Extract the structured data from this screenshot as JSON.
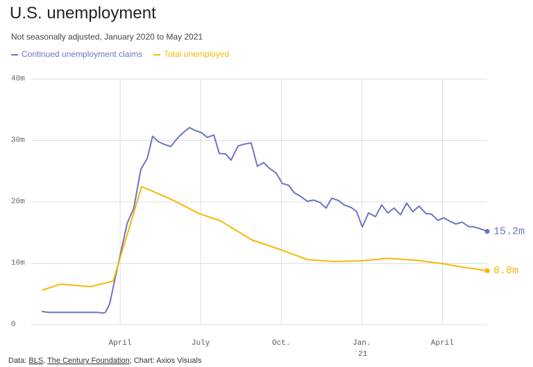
{
  "chart_data": {
    "type": "line",
    "title": "U.S. unemployment",
    "subtitle": "Not seasonally adjusted, January 2020 to May 2021",
    "source_parts": [
      "Data: ",
      "BLS",
      ", ",
      "The Century Foundation",
      "; Chart: Axios Visuals"
    ],
    "xlim": [
      -0.57,
      16.67
    ],
    "xticks": [
      {
        "value": 3,
        "label": "April"
      },
      {
        "value": 6,
        "label": "July"
      },
      {
        "value": 9,
        "label": "Oct."
      },
      {
        "value": 12,
        "label": "Jan."
      },
      {
        "value": 15,
        "label": "April"
      }
    ],
    "year_label": "`21",
    "ylim": [
      0,
      40
    ],
    "yticks": [
      0,
      {
        "value": 10,
        "label": "10m"
      },
      {
        "value": 20,
        "label": "20m"
      },
      {
        "value": 30,
        "label": "30m"
      },
      {
        "value": 40,
        "label": "40m"
      }
    ],
    "grid": true,
    "series": [
      {
        "name": "Continued unemployment claims",
        "color": "#6b74c4",
        "x": [
          0.08,
          0.34,
          0.59,
          0.85,
          1.11,
          1.37,
          1.63,
          1.89,
          2.14,
          2.35,
          2.45,
          2.61,
          2.82,
          3.26,
          3.51,
          3.77,
          4.01,
          4.21,
          4.42,
          4.63,
          4.88,
          5.14,
          5.35,
          5.58,
          5.81,
          6.02,
          6.25,
          6.49,
          6.69,
          6.93,
          7.13,
          7.39,
          7.62,
          7.88,
          8.11,
          8.35,
          8.55,
          8.81,
          9.04,
          9.28,
          9.48,
          9.72,
          9.97,
          10.21,
          10.44,
          10.67,
          10.88,
          11.14,
          11.34,
          11.6,
          11.81,
          12.02,
          12.25,
          12.51,
          12.74,
          12.97,
          13.2,
          13.44,
          13.67,
          13.9,
          14.13,
          14.39,
          14.6,
          14.83,
          15.06,
          15.3,
          15.5,
          15.74,
          15.97,
          16.2,
          16.43,
          16.67
        ],
        "values": [
          2.15,
          2.0,
          2.0,
          2.0,
          2.0,
          2.0,
          2.0,
          2.0,
          2.0,
          1.9,
          2.0,
          3.4,
          7.7,
          16.5,
          19.0,
          25.3,
          27.1,
          30.7,
          29.8,
          29.4,
          29.0,
          30.4,
          31.3,
          32.1,
          31.6,
          31.3,
          30.5,
          30.9,
          27.9,
          27.8,
          26.8,
          29.1,
          29.4,
          29.6,
          25.8,
          26.4,
          25.5,
          24.7,
          23.0,
          22.7,
          21.5,
          20.9,
          20.1,
          20.3,
          19.9,
          19.0,
          20.6,
          20.2,
          19.5,
          19.1,
          18.4,
          15.9,
          18.2,
          17.6,
          19.5,
          18.2,
          19.0,
          17.9,
          19.8,
          18.4,
          19.3,
          18.1,
          18.0,
          17.0,
          17.4,
          16.8,
          16.4,
          16.7,
          16.0,
          15.9,
          15.6,
          15.2
        ],
        "end_label": "15.2m"
      },
      {
        "name": "Total unemployed",
        "color": "#f5b800",
        "x": [
          0.08,
          0.78,
          1.89,
          2.74,
          3.8,
          4.91,
          5.94,
          6.74,
          7.91,
          8.99,
          9.97,
          10.93,
          11.96,
          12.99,
          14.03,
          15.06,
          15.71,
          16.67
        ],
        "values": [
          5.6,
          6.6,
          6.2,
          7.1,
          22.5,
          20.4,
          18.1,
          16.9,
          13.8,
          12.2,
          10.6,
          10.3,
          10.4,
          10.8,
          10.5,
          9.9,
          9.4,
          8.8
        ],
        "end_label": "8.8m"
      }
    ]
  }
}
